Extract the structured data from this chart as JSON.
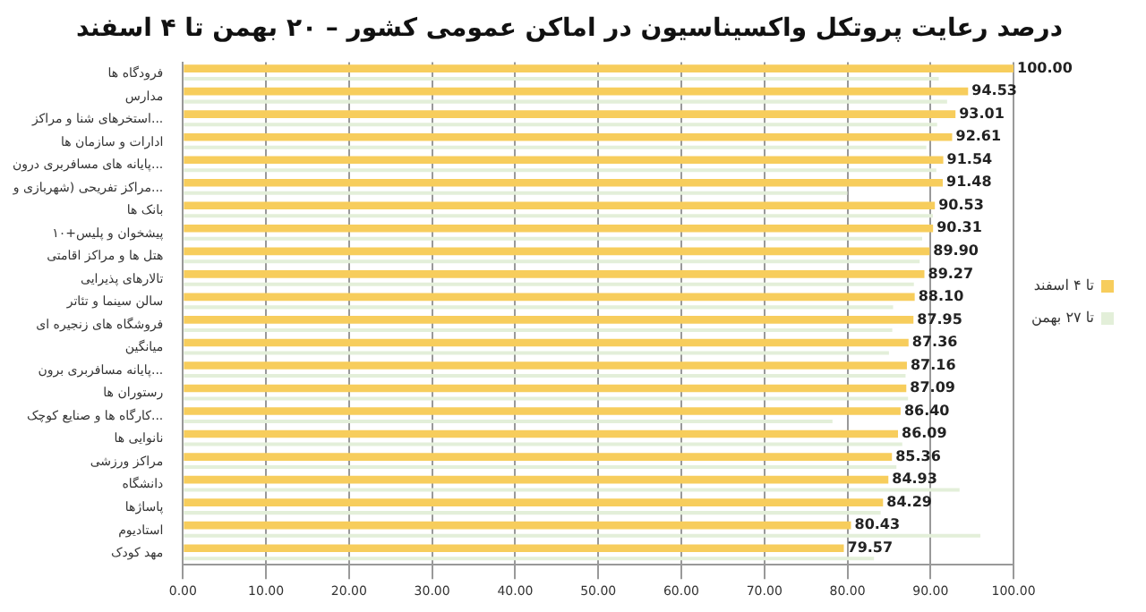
{
  "chart_data": {
    "type": "bar",
    "orientation": "horizontal",
    "title": "درصد رعایت پروتکل واکسیناسیون در اماکن عمومی کشور – ۲۰ بهمن تا ۴ اسفند",
    "categories": [
      "فرودگاه ها",
      "مدارس",
      "استخرهای شنا و مراکز...",
      "ادارات و سازمان ها",
      "پایانه های مسافربری درون...",
      "مراکز تفریحی (شهربازی و...",
      "بانک ها",
      "پیشخوان و پلیس+۱۰",
      "هتل ها و مراکز اقامتی",
      "تالارهای پذیرایی",
      "سالن سینما و تئاتر",
      "فروشگاه های زنجیره ای",
      "میانگین",
      "پایانه مسافربری برون...",
      "رستوران ها",
      "کارگاه ها و صنایع کوچک...",
      "نانوایی ها",
      "مراکز ورزشی",
      "دانشگاه",
      "پاساژها",
      "استادیوم",
      "مهد کودک"
    ],
    "series": [
      {
        "name": "تا ۴ اسفند",
        "color": "#f7cd5c",
        "values": [
          100.0,
          94.53,
          93.01,
          92.61,
          91.54,
          91.48,
          90.53,
          90.31,
          89.9,
          89.27,
          88.1,
          87.95,
          87.36,
          87.16,
          87.09,
          86.4,
          86.09,
          85.36,
          84.93,
          84.29,
          80.43,
          79.57
        ],
        "value_labels": [
          "100.00",
          "94.53",
          "93.01",
          "92.61",
          "91.54",
          "91.48",
          "90.53",
          "90.31",
          "89.90",
          "89.27",
          "88.10",
          "87.95",
          "87.36",
          "87.16",
          "87.09",
          "86.40",
          "86.09",
          "85.36",
          "84.93",
          "84.29",
          "80.43",
          "79.57"
        ]
      },
      {
        "name": "تا ۲۷ بهمن",
        "color": "#e3efd9",
        "values": [
          91.0,
          92.0,
          90.8,
          89.5,
          90.7,
          80.0,
          90.3,
          89.0,
          88.7,
          88.0,
          85.5,
          85.4,
          85.0,
          87.0,
          87.3,
          78.2,
          86.6,
          85.9,
          93.5,
          84.0,
          96.0,
          83.2
        ]
      }
    ],
    "xlim": [
      0,
      100
    ],
    "xticks": [
      {
        "value": 0,
        "label": "0.00"
      },
      {
        "value": 10,
        "label": "10.00"
      },
      {
        "value": 20,
        "label": "20.00"
      },
      {
        "value": 30,
        "label": "30.00"
      },
      {
        "value": 40,
        "label": "40.00"
      },
      {
        "value": 50,
        "label": "50.00"
      },
      {
        "value": 60,
        "label": "60.00"
      },
      {
        "value": 70,
        "label": "70.00"
      },
      {
        "value": 80,
        "label": "80.00"
      },
      {
        "value": 90,
        "label": "90.00"
      },
      {
        "value": 100,
        "label": "100.00"
      }
    ],
    "grid": "x",
    "legend": "right"
  }
}
